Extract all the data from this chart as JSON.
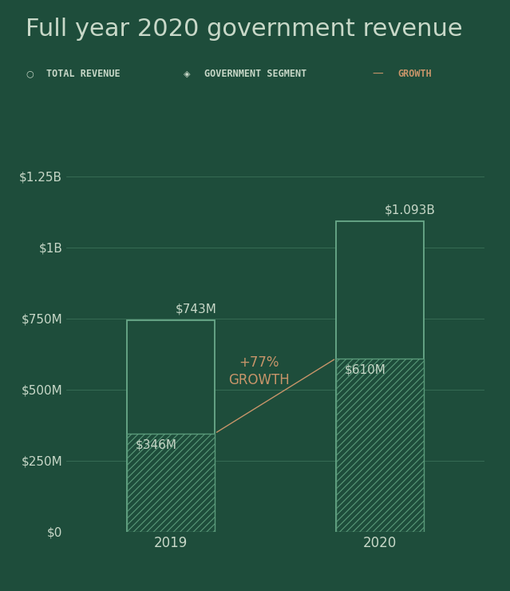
{
  "title": "Full year 2020 government revenue",
  "background_color": "#1e4d3b",
  "bar_outline_color": "#6aaa8a",
  "hatch_color": "#5a9a7a",
  "text_color_light": "#c8d8c8",
  "text_color_gold": "#c8956a",
  "years": [
    "2019",
    "2020"
  ],
  "total_revenue": [
    743,
    1093
  ],
  "gov_revenue": [
    346,
    610
  ],
  "ylim": [
    0,
    1350
  ],
  "yticks": [
    0,
    250,
    500,
    750,
    1000,
    1250
  ],
  "ytick_labels": [
    "$0",
    "$250M",
    "$500M",
    "$750M",
    "$1B",
    "$1.25B"
  ],
  "bar_labels": [
    "$743M",
    "$1.093B"
  ],
  "gov_labels": [
    "$346M",
    "$610M"
  ],
  "growth_text_line1": "+77%",
  "growth_text_line2": "GROWTH",
  "legend_items": [
    "TOTAL REVENUE",
    "GOVERNMENT SEGMENT",
    "GROWTH"
  ],
  "title_fontsize": 22,
  "tick_label_fontsize": 11,
  "bar_annotation_fontsize": 11,
  "legend_fontsize": 8.5,
  "year_label_fontsize": 12
}
